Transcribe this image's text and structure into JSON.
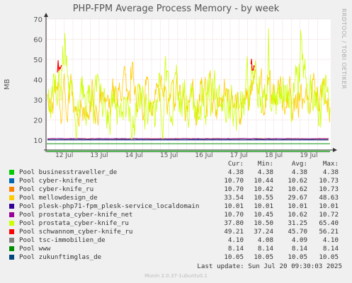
{
  "title": "PHP-FPM Average Process Memory - by week",
  "side_label": "RRDTOOL / TOBI OETIKER",
  "footer": {
    "last_update": "Last update: Sun Jul 20 09:30:03 2025",
    "version": "Munin 2.0.37-1ubuntu0.1"
  },
  "legend_headers": {
    "cur": "Cur:",
    "min": "Min:",
    "avg": "Avg:",
    "max": "Max:"
  },
  "colors": {
    "background": "#f0f0f0",
    "plot_bg": "#ffffff",
    "grid": "#e8b8b8",
    "axis": "#333333"
  },
  "chart_data": {
    "type": "line",
    "ylabel": "MB",
    "ylim": [
      5,
      70
    ],
    "yticks": [
      "10",
      "20",
      "30",
      "40",
      "50",
      "60",
      "70"
    ],
    "xticks": [
      "12 Jul",
      "13 Jul",
      "14 Jul",
      "15 Jul",
      "16 Jul",
      "17 Jul",
      "18 Jul",
      "19 Jul"
    ],
    "grid": true,
    "series": [
      {
        "name": "Pool businesstraveller_de",
        "color": "#00cc00",
        "cur": "4.38",
        "min": "4.38",
        "avg": "4.38",
        "max": "4.38"
      },
      {
        "name": "Pool cyber-knife_net",
        "color": "#0066b3",
        "cur": "10.70",
        "min": "10.44",
        "avg": "10.62",
        "max": "10.73"
      },
      {
        "name": "Pool cyber-knife_ru",
        "color": "#ff8000",
        "cur": "10.70",
        "min": "10.42",
        "avg": "10.62",
        "max": "10.73"
      },
      {
        "name": "Pool mellowdesign_de",
        "color": "#ffcc00",
        "cur": "33.54",
        "min": "10.55",
        "avg": "29.67",
        "max": "48.63"
      },
      {
        "name": "Pool plesk-php71-fpm_plesk-service_localdomain",
        "color": "#330099",
        "cur": "10.01",
        "min": "10.01",
        "avg": "10.01",
        "max": "10.01"
      },
      {
        "name": "Pool prostata_cyber-knife_net",
        "color": "#990099",
        "cur": "10.70",
        "min": "10.45",
        "avg": "10.62",
        "max": "10.72"
      },
      {
        "name": "Pool prostata_cyber-knife_ru",
        "color": "#ccff00",
        "cur": "37.80",
        "min": "10.50",
        "avg": "31.25",
        "max": "65.40"
      },
      {
        "name": "Pool schwannom_cyber-knife_ru",
        "color": "#ff0000",
        "cur": "49.21",
        "min": "37.24",
        "avg": "45.70",
        "max": "56.21"
      },
      {
        "name": "Pool tsc-immobilien_de",
        "color": "#808080",
        "cur": "4.10",
        "min": "4.08",
        "avg": "4.09",
        "max": "4.10"
      },
      {
        "name": "Pool www",
        "color": "#008f00",
        "cur": "8.14",
        "min": "8.14",
        "avg": "8.14",
        "max": "8.14"
      },
      {
        "name": "Pool zukunftimglas_de",
        "color": "#00487d",
        "cur": "10.05",
        "min": "10.05",
        "avg": "10.05",
        "max": "10.05"
      }
    ]
  }
}
